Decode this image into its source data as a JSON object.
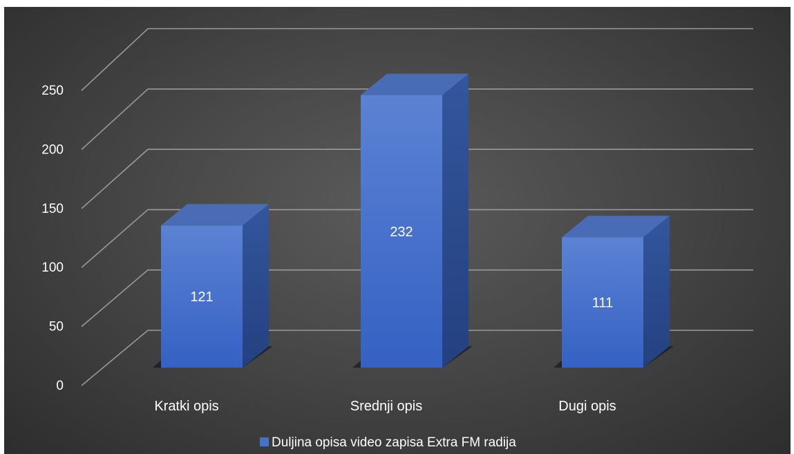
{
  "chart_data": {
    "type": "bar",
    "style": "3d-column",
    "categories": [
      "Kratki opis",
      "Srednji opis",
      "Dugi opis"
    ],
    "series": [
      {
        "name": "Duljina opisa video zapisa Extra FM radija",
        "values": [
          121,
          232,
          111
        ]
      }
    ],
    "data_labels": [
      "121",
      "232",
      "111"
    ],
    "yticks": [
      "0",
      "50",
      "100",
      "150",
      "200",
      "250"
    ],
    "ylim": [
      0,
      250
    ],
    "grid": true,
    "legend_position": "bottom",
    "colors": {
      "bar_front_top": "#5b82d3",
      "bar_front_bottom": "#3561c4",
      "bar_side": "#2a4a93",
      "bar_top": "#4a6bb5",
      "gridline": "#9a9a9a",
      "legend_swatch": "#4472c4"
    }
  }
}
